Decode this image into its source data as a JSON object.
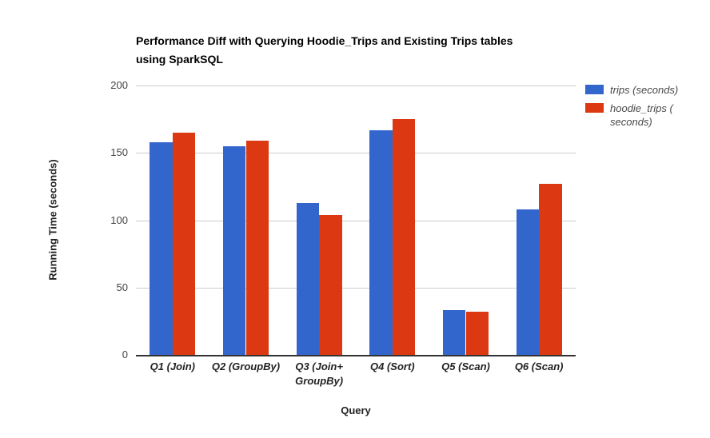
{
  "title": "Performance Diff with Querying Hoodie_Trips and Existing Trips tables\nusing SparkSQL",
  "chart_data": {
    "type": "bar",
    "title": "Performance Diff with Querying Hoodie_Trips and Existing Trips tables using SparkSQL",
    "xlabel": "Query",
    "ylabel": "Running Time (seconds)",
    "ylim": [
      0,
      200
    ],
    "yticks": [
      0,
      50,
      100,
      150,
      200
    ],
    "grid": true,
    "legend_position": "right",
    "categories": [
      "Q1 (Join)",
      "Q2 (GroupBy)",
      "Q3 (Join+\nGroupBy)",
      "Q4 (Sort)",
      "Q5 (Scan)",
      "Q6 (Scan)"
    ],
    "series": [
      {
        "name": "trips (seconds)",
        "display_label": "trips (seconds)",
        "color": "#3366cc",
        "values": [
          158,
          155,
          113,
          167,
          33,
          108
        ]
      },
      {
        "name": "hoodie_trips (seconds)",
        "display_label": "hoodie_trips (\nseconds)",
        "color": "#dc3912",
        "values": [
          165,
          159,
          104,
          175,
          32,
          127
        ]
      }
    ],
    "colors": {
      "gridline": "#cccccc",
      "axis_line": "#333333",
      "tick_text": "#444444",
      "legend_text": "#494949"
    }
  }
}
